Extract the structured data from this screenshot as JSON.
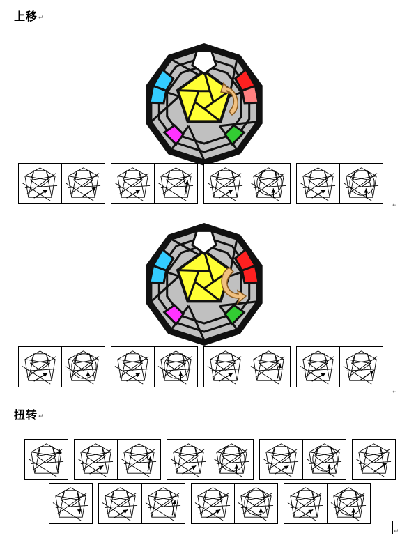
{
  "sections": {
    "shift_title": "上移",
    "twist_title": "扭转"
  },
  "marks": {
    "return_mark": "↵"
  },
  "cube_colors": {
    "top_face": "#ffff33",
    "left_face": "#33ccff",
    "right_face": "#ff2020",
    "right_light": "#ff8080",
    "bottom_left": "#ff33ff",
    "bottom_right": "#33cc33",
    "stickers": "#c0c0c0",
    "frame": "#111111",
    "arrow": "#f0c080"
  },
  "diagrams": {
    "row1": [
      [
        "pent-arrow-ne",
        "pent-arrow-ne-right"
      ],
      [
        "pent-arrow-ne",
        "pent-arrow-up-right"
      ],
      [
        "pent-arrow-ne",
        "pent-circle-up"
      ],
      [
        "pent-arrow-ne",
        "pent-circle-up"
      ]
    ],
    "row2": [
      [
        "pent-arrow-ne",
        "pent-circle-up"
      ],
      [
        "pent-arrow-ne",
        "pent-circle-up"
      ],
      [
        "pent-arrow-ne",
        "pent-arrow-up-right"
      ],
      [
        "pent-arrow-ne",
        "pent-arrow-ne-right"
      ]
    ],
    "row3": [
      [
        "pent-arrow-up"
      ],
      [
        "pent-arrow-ne",
        "pent-arrow-up-right"
      ],
      [
        "pent-arrow-ne",
        "pent-circle-up"
      ],
      [
        "pent-arrow-ne",
        "pent-circle-up"
      ],
      [
        "pent-arrow-ne-right"
      ]
    ],
    "row4": [
      [
        "pent-arrow-down"
      ],
      [
        "pent-arrow-ne",
        "pent-arrow-up-right"
      ],
      [
        "pent-arrow-ne",
        "pent-circle-up"
      ],
      [
        "pent-arrow-ne",
        "pent-circle-up"
      ]
    ]
  }
}
